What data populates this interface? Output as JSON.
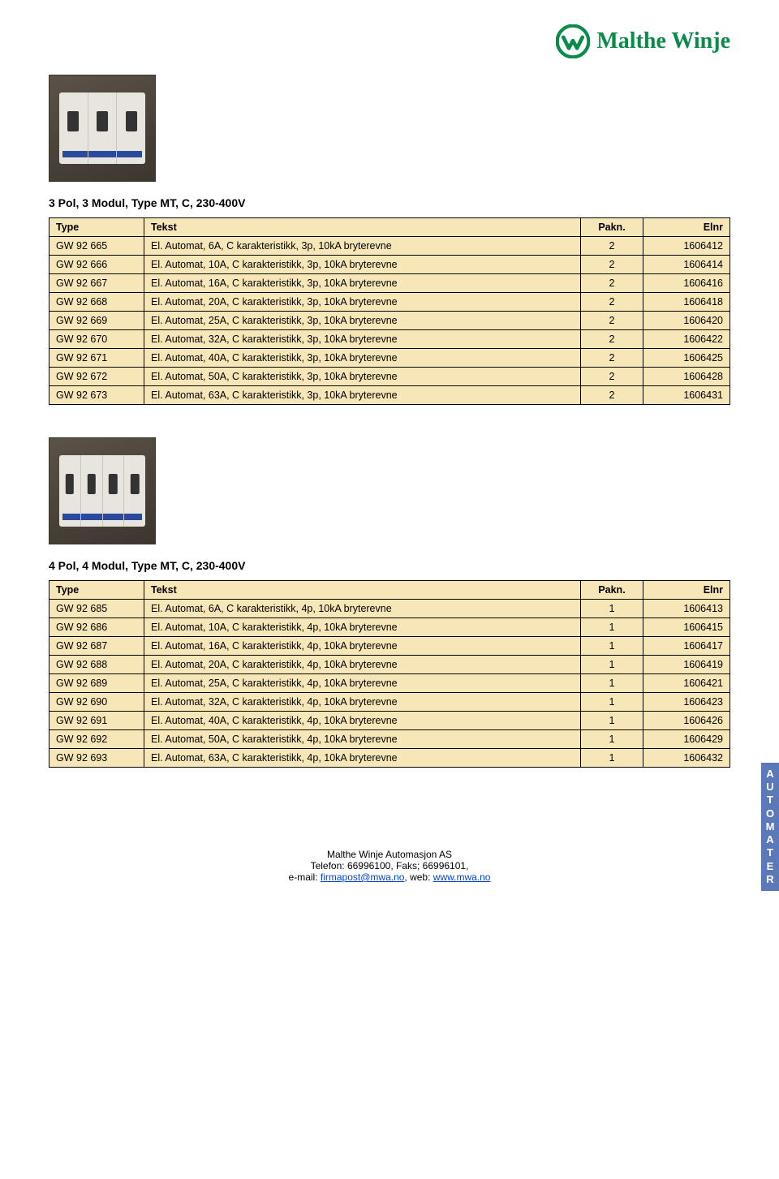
{
  "brand": {
    "name": "Malthe Winje",
    "color": "#0a8b49"
  },
  "section1": {
    "title": "3 Pol, 3 Modul, Type MT, C, 230-400V",
    "poles": 3,
    "columns": [
      "Type",
      "Tekst",
      "Pakn.",
      "Elnr"
    ],
    "rows": [
      [
        "GW 92 665",
        "El. Automat, 6A, C karakteristikk, 3p, 10kA bryterevne",
        "2",
        "1606412"
      ],
      [
        "GW 92 666",
        "El. Automat, 10A, C karakteristikk, 3p, 10kA bryterevne",
        "2",
        "1606414"
      ],
      [
        "GW 92 667",
        "El. Automat, 16A, C karakteristikk, 3p, 10kA bryterevne",
        "2",
        "1606416"
      ],
      [
        "GW 92 668",
        "El. Automat, 20A, C karakteristikk, 3p, 10kA bryterevne",
        "2",
        "1606418"
      ],
      [
        "GW 92 669",
        "El. Automat, 25A, C karakteristikk, 3p, 10kA bryterevne",
        "2",
        "1606420"
      ],
      [
        "GW 92 670",
        "El. Automat, 32A, C karakteristikk, 3p, 10kA bryterevne",
        "2",
        "1606422"
      ],
      [
        "GW 92 671",
        "El. Automat, 40A, C karakteristikk, 3p, 10kA bryterevne",
        "2",
        "1606425"
      ],
      [
        "GW 92 672",
        "El. Automat, 50A, C karakteristikk, 3p, 10kA bryterevne",
        "2",
        "1606428"
      ],
      [
        "GW 92 673",
        "El. Automat, 63A, C karakteristikk, 3p, 10kA bryterevne",
        "2",
        "1606431"
      ]
    ]
  },
  "section2": {
    "title": "4 Pol, 4 Modul, Type MT, C, 230-400V",
    "poles": 4,
    "columns": [
      "Type",
      "Tekst",
      "Pakn.",
      "Elnr"
    ],
    "rows": [
      [
        "GW 92 685",
        "El. Automat, 6A, C karakteristikk, 4p, 10kA bryterevne",
        "1",
        "1606413"
      ],
      [
        "GW 92 686",
        "El. Automat, 10A, C karakteristikk, 4p, 10kA bryterevne",
        "1",
        "1606415"
      ],
      [
        "GW 92 687",
        "El. Automat, 16A, C karakteristikk, 4p, 10kA bryterevne",
        "1",
        "1606417"
      ],
      [
        "GW 92 688",
        "El. Automat, 20A, C karakteristikk, 4p, 10kA bryterevne",
        "1",
        "1606419"
      ],
      [
        "GW 92 689",
        "El. Automat, 25A, C karakteristikk, 4p, 10kA bryterevne",
        "1",
        "1606421"
      ],
      [
        "GW 92 690",
        "El. Automat, 32A, C karakteristikk, 4p, 10kA bryterevne",
        "1",
        "1606423"
      ],
      [
        "GW 92 691",
        "El. Automat, 40A, C karakteristikk, 4p, 10kA bryterevne",
        "1",
        "1606426"
      ],
      [
        "GW 92 692",
        "El. Automat, 50A, C karakteristikk, 4p, 10kA bryterevne",
        "1",
        "1606429"
      ],
      [
        "GW 92 693",
        "El. Automat, 63A, C karakteristikk, 4p, 10kA bryterevne",
        "1",
        "1606432"
      ]
    ]
  },
  "footer": {
    "company": "Malthe Winje Automasjon AS",
    "phone_line": "Telefon: 66996100, Faks; 66996101,",
    "email_label": "e-mail: ",
    "email": "firmapost@mwa.no",
    "web_label": ", web: ",
    "web": "www.mwa.no"
  },
  "side_tab": "AUTOMATER",
  "table_style": {
    "header_bg": "#f7e6b8",
    "row_bg": "#f7e6b8",
    "border": "#000000",
    "font_size": 12.5
  }
}
